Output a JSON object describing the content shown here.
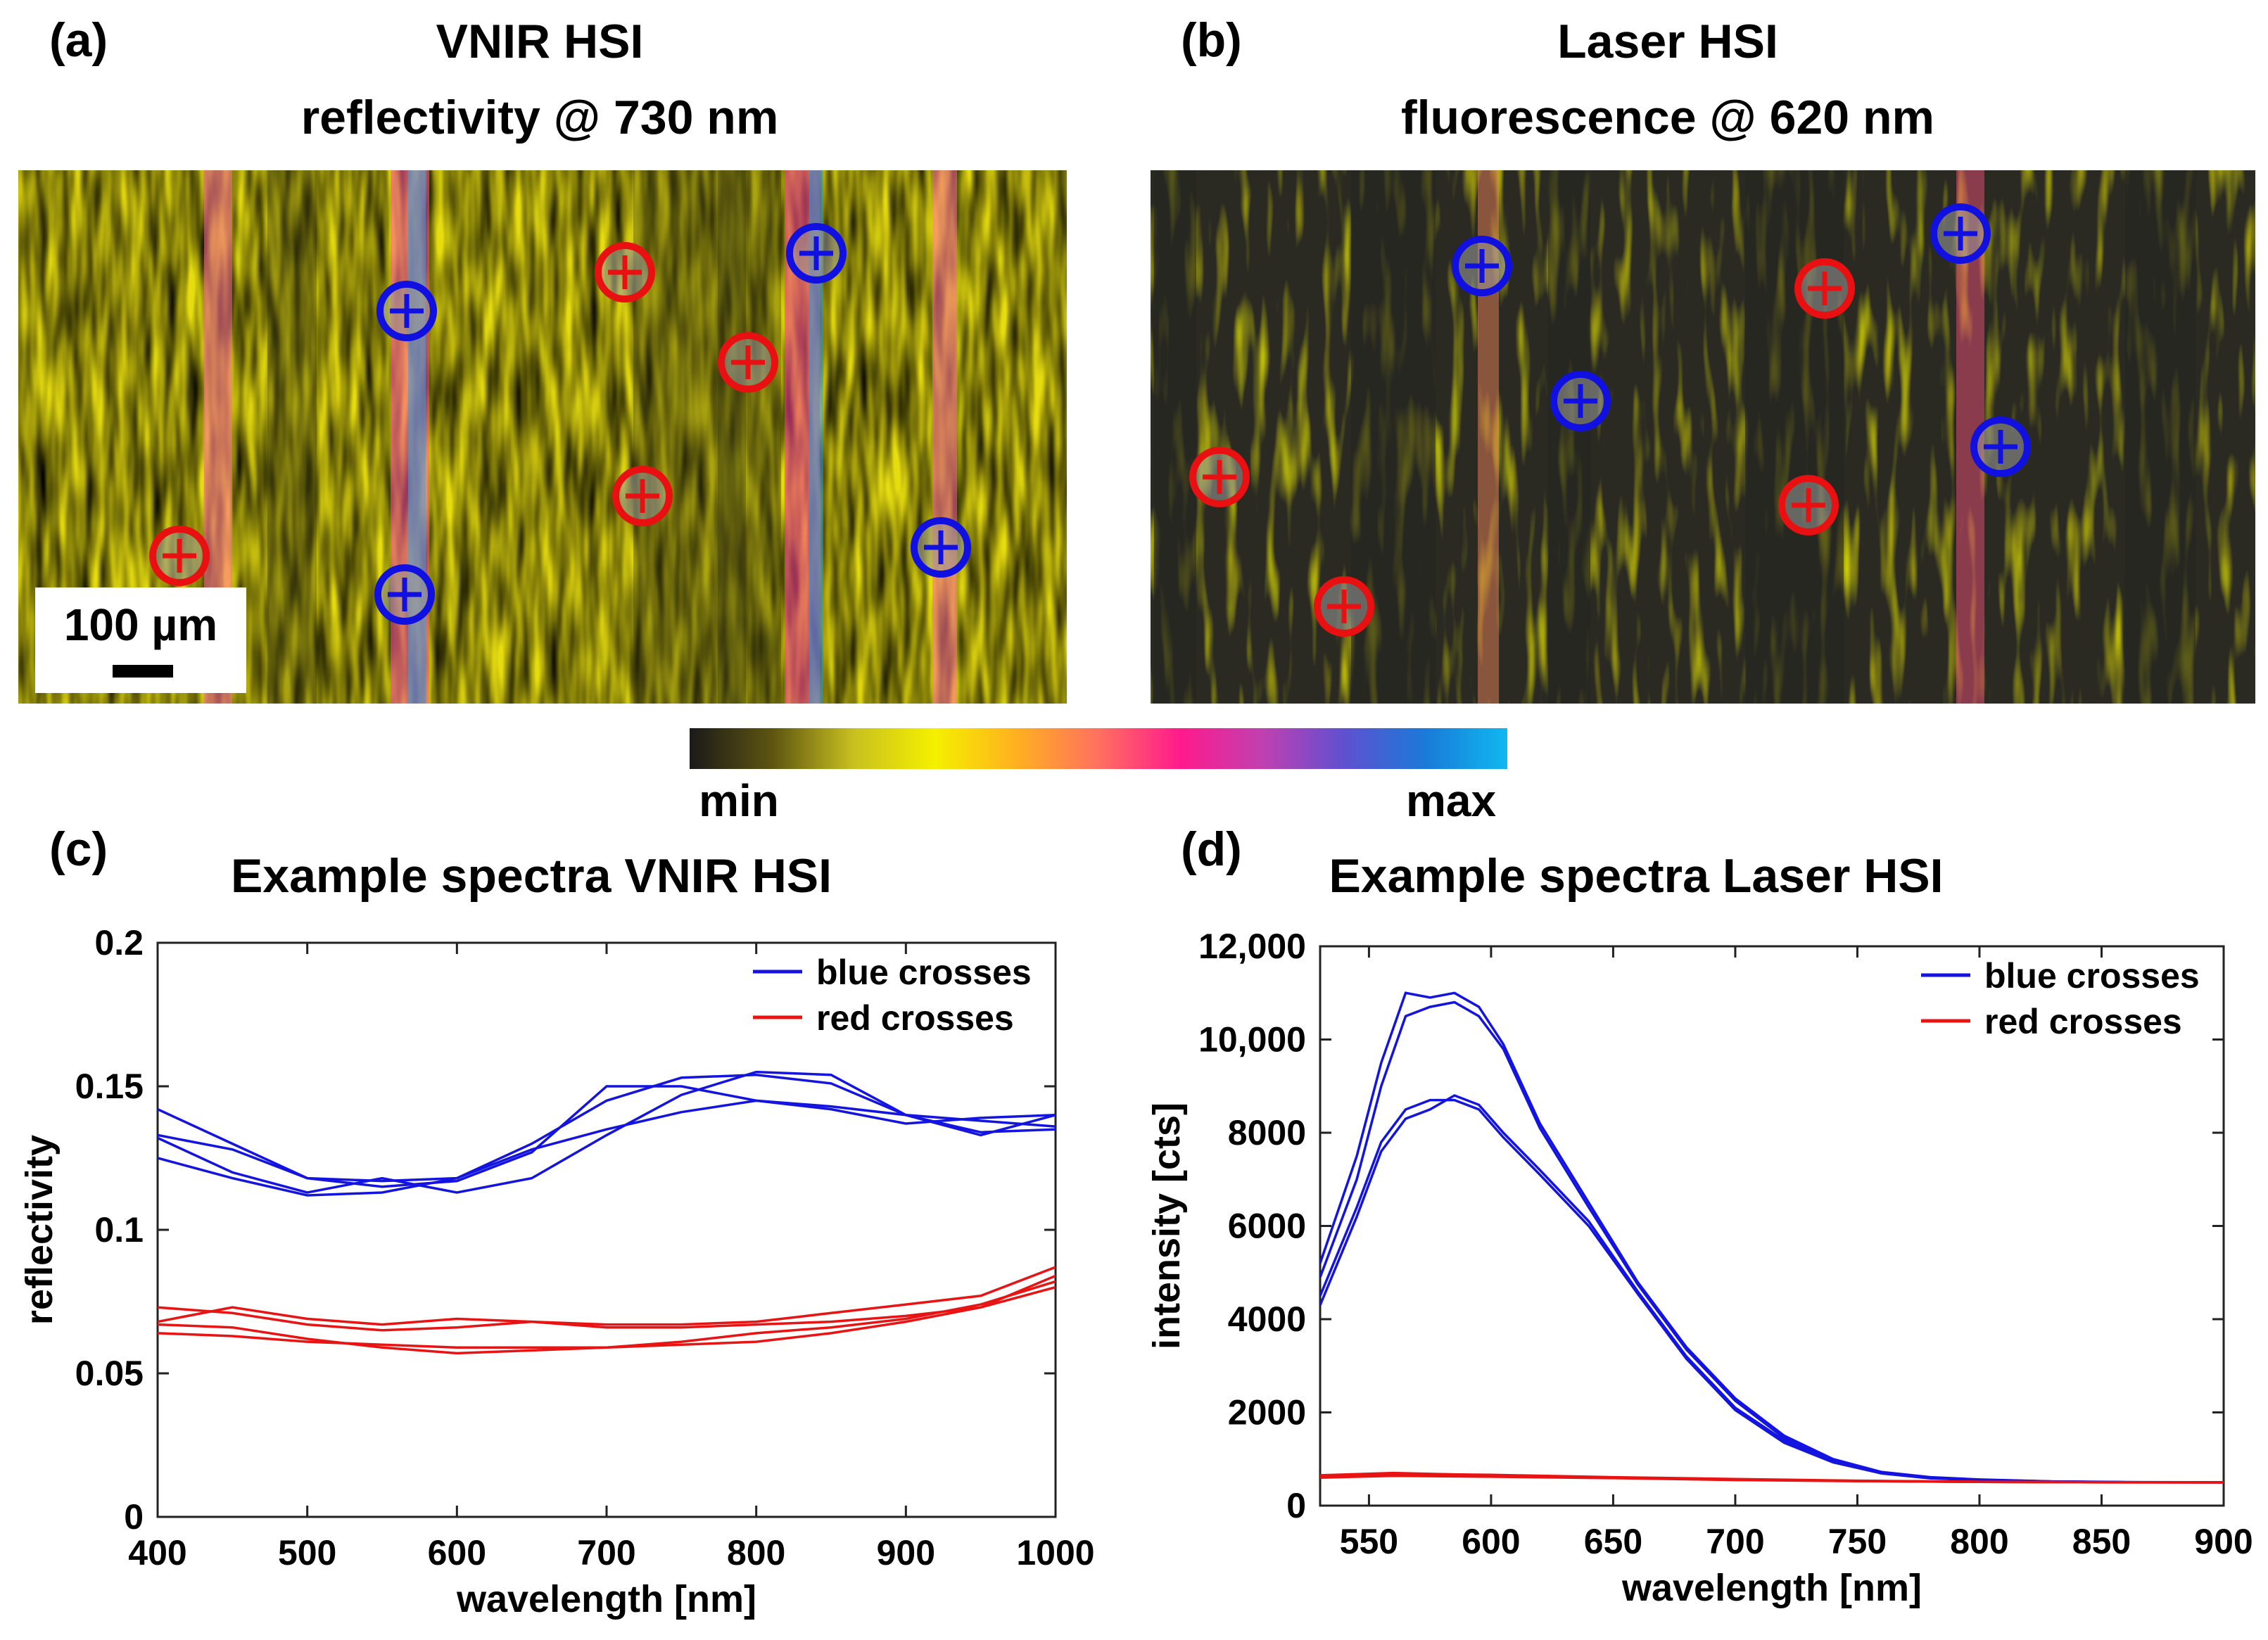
{
  "panels": {
    "a": {
      "label": "(a)",
      "title_line1": "VNIR HSI",
      "title_line2": "reflectivity @ 730 nm"
    },
    "b": {
      "label": "(b)",
      "title_line1": "Laser HSI",
      "title_line2": "fluorescence @ 620 nm"
    },
    "c": {
      "label": "(c)",
      "title": "Example spectra VNIR HSI"
    },
    "d": {
      "label": "(d)",
      "title": "Example spectra Laser HSI"
    }
  },
  "scale_bar": {
    "label": "100 µm"
  },
  "colorbar": {
    "min_label": "min",
    "max_label": "max",
    "stops": [
      "#1a1a1a",
      "#5c5410",
      "#c8c020",
      "#f5f000",
      "#ffb020",
      "#ff7060",
      "#ff1a8c",
      "#c040b0",
      "#6050d0",
      "#1a7ad8",
      "#10b8f0"
    ]
  },
  "colors": {
    "blue_series": "#1414e0",
    "red_series": "#e81414",
    "blue_marker": "#1010e0",
    "red_marker": "#e81010"
  },
  "markers": {
    "a": [
      {
        "color": "red"
      },
      {
        "color": "red"
      },
      {
        "color": "red"
      },
      {
        "color": "red"
      },
      {
        "color": "blue"
      },
      {
        "color": "blue"
      },
      {
        "color": "blue"
      },
      {
        "color": "blue"
      }
    ],
    "b": [
      {
        "color": "red"
      },
      {
        "color": "red"
      },
      {
        "color": "red"
      },
      {
        "color": "red"
      },
      {
        "color": "blue"
      },
      {
        "color": "blue"
      },
      {
        "color": "blue"
      },
      {
        "color": "blue"
      }
    ]
  },
  "chart_data": [
    {
      "id": "c",
      "type": "line",
      "title": "Example spectra VNIR HSI",
      "xlabel": "wavelength [nm]",
      "ylabel": "reflectivity",
      "xlim": [
        400,
        1000
      ],
      "ylim": [
        0,
        0.2
      ],
      "xticks": [
        400,
        500,
        600,
        700,
        800,
        900,
        1000
      ],
      "xtick_labels": [
        "400",
        "500",
        "600",
        "700",
        "800",
        "900",
        "1000"
      ],
      "yticks": [
        0,
        0.05,
        0.1,
        0.15,
        0.2
      ],
      "ytick_labels": [
        "0",
        "0.05",
        "0.1",
        "0.15",
        "0.2"
      ],
      "legend": {
        "position": "top-right",
        "entries": [
          {
            "label": "blue crosses",
            "color": "#1414e0"
          },
          {
            "label": "red crosses",
            "color": "#e81414"
          }
        ]
      },
      "series": [
        {
          "name": "blue crosses",
          "color": "#1414e0",
          "x": [
            400,
            450,
            500,
            550,
            600,
            650,
            700,
            750,
            800,
            850,
            900,
            950,
            1000
          ],
          "y": [
            0.142,
            0.13,
            0.118,
            0.117,
            0.118,
            0.13,
            0.145,
            0.153,
            0.154,
            0.151,
            0.14,
            0.133,
            0.14
          ]
        },
        {
          "name": "blue crosses",
          "color": "#1414e0",
          "x": [
            400,
            450,
            500,
            550,
            600,
            650,
            700,
            750,
            800,
            850,
            900,
            950,
            1000
          ],
          "y": [
            0.133,
            0.128,
            0.118,
            0.115,
            0.117,
            0.127,
            0.15,
            0.15,
            0.145,
            0.143,
            0.14,
            0.138,
            0.136
          ]
        },
        {
          "name": "blue crosses",
          "color": "#1414e0",
          "x": [
            400,
            450,
            500,
            550,
            600,
            650,
            700,
            750,
            800,
            850,
            900,
            950,
            1000
          ],
          "y": [
            0.125,
            0.118,
            0.112,
            0.113,
            0.118,
            0.128,
            0.135,
            0.141,
            0.145,
            0.142,
            0.137,
            0.139,
            0.14
          ]
        },
        {
          "name": "blue crosses",
          "color": "#1414e0",
          "x": [
            400,
            450,
            500,
            550,
            600,
            650,
            700,
            750,
            800,
            850,
            900,
            950,
            1000
          ],
          "y": [
            0.132,
            0.12,
            0.113,
            0.118,
            0.113,
            0.118,
            0.133,
            0.147,
            0.155,
            0.154,
            0.14,
            0.134,
            0.135
          ]
        },
        {
          "name": "red crosses",
          "color": "#e81414",
          "x": [
            400,
            450,
            500,
            550,
            600,
            650,
            700,
            750,
            800,
            850,
            900,
            950,
            1000
          ],
          "y": [
            0.073,
            0.071,
            0.067,
            0.065,
            0.066,
            0.068,
            0.067,
            0.067,
            0.068,
            0.071,
            0.074,
            0.077,
            0.087
          ]
        },
        {
          "name": "red crosses",
          "color": "#e81414",
          "x": [
            400,
            450,
            500,
            550,
            600,
            650,
            700,
            750,
            800,
            850,
            900,
            950,
            1000
          ],
          "y": [
            0.068,
            0.073,
            0.069,
            0.067,
            0.069,
            0.068,
            0.066,
            0.066,
            0.067,
            0.068,
            0.07,
            0.073,
            0.084
          ]
        },
        {
          "name": "red crosses",
          "color": "#e81414",
          "x": [
            400,
            450,
            500,
            550,
            600,
            650,
            700,
            750,
            800,
            850,
            900,
            950,
            1000
          ],
          "y": [
            0.064,
            0.063,
            0.061,
            0.06,
            0.059,
            0.059,
            0.059,
            0.06,
            0.061,
            0.064,
            0.068,
            0.073,
            0.08
          ]
        },
        {
          "name": "red crosses",
          "color": "#e81414",
          "x": [
            400,
            450,
            500,
            550,
            600,
            650,
            700,
            750,
            800,
            850,
            900,
            950,
            1000
          ],
          "y": [
            0.067,
            0.066,
            0.062,
            0.059,
            0.057,
            0.058,
            0.059,
            0.061,
            0.064,
            0.066,
            0.069,
            0.074,
            0.082
          ]
        }
      ]
    },
    {
      "id": "d",
      "type": "line",
      "title": "Example spectra Laser HSI",
      "xlabel": "wavelength [nm]",
      "ylabel": "intensity [cts]",
      "xlim": [
        530,
        900
      ],
      "ylim": [
        0,
        12000
      ],
      "xticks": [
        550,
        600,
        650,
        700,
        750,
        800,
        850,
        900
      ],
      "xtick_labels": [
        "550",
        "600",
        "650",
        "700",
        "750",
        "800",
        "850",
        "900"
      ],
      "yticks": [
        0,
        2000,
        4000,
        6000,
        8000,
        10000,
        12000
      ],
      "ytick_labels": [
        "0",
        "2000",
        "4000",
        "6000",
        "8000",
        "10,000",
        "12,000"
      ],
      "legend": {
        "position": "top-right",
        "entries": [
          {
            "label": "blue crosses",
            "color": "#1414e0"
          },
          {
            "label": "red crosses",
            "color": "#e81414"
          }
        ]
      },
      "series": [
        {
          "name": "blue crosses",
          "color": "#1414e0",
          "x": [
            530,
            545,
            555,
            565,
            575,
            585,
            595,
            605,
            620,
            640,
            660,
            680,
            700,
            720,
            740,
            760,
            780,
            800,
            830,
            860,
            900
          ],
          "y": [
            5200,
            7500,
            9500,
            11000,
            10900,
            11000,
            10700,
            9900,
            8200,
            6500,
            4800,
            3400,
            2300,
            1500,
            1000,
            720,
            610,
            560,
            520,
            505,
            500
          ]
        },
        {
          "name": "blue crosses",
          "color": "#1414e0",
          "x": [
            530,
            545,
            555,
            565,
            575,
            585,
            595,
            605,
            620,
            640,
            660,
            680,
            700,
            720,
            740,
            760,
            780,
            800,
            830,
            860,
            900
          ],
          "y": [
            4900,
            7000,
            9000,
            10500,
            10700,
            10800,
            10500,
            9800,
            8100,
            6400,
            4750,
            3350,
            2250,
            1450,
            980,
            710,
            600,
            555,
            518,
            503,
            500
          ]
        },
        {
          "name": "blue crosses",
          "color": "#1414e0",
          "x": [
            530,
            545,
            555,
            565,
            575,
            585,
            595,
            605,
            620,
            640,
            660,
            680,
            700,
            720,
            740,
            760,
            780,
            800,
            830,
            860,
            900
          ],
          "y": [
            4300,
            6200,
            7600,
            8300,
            8500,
            8800,
            8600,
            8000,
            7200,
            6100,
            4600,
            3200,
            2100,
            1400,
            950,
            700,
            590,
            550,
            515,
            502,
            500
          ]
        },
        {
          "name": "blue crosses",
          "color": "#1414e0",
          "x": [
            530,
            545,
            555,
            565,
            575,
            585,
            595,
            605,
            620,
            640,
            660,
            680,
            700,
            720,
            740,
            760,
            780,
            800,
            830,
            860,
            900
          ],
          "y": [
            4500,
            6400,
            7800,
            8500,
            8700,
            8700,
            8500,
            7900,
            7100,
            6000,
            4550,
            3150,
            2050,
            1350,
            930,
            690,
            585,
            548,
            514,
            502,
            500
          ]
        },
        {
          "name": "red crosses",
          "color": "#e81414",
          "x": [
            530,
            560,
            600,
            650,
            700,
            750,
            800,
            850,
            900
          ],
          "y": [
            650,
            700,
            650,
            600,
            560,
            530,
            510,
            500,
            500
          ]
        },
        {
          "name": "red crosses",
          "color": "#e81414",
          "x": [
            530,
            560,
            600,
            650,
            700,
            750,
            800,
            850,
            900
          ],
          "y": [
            620,
            680,
            660,
            610,
            570,
            535,
            512,
            502,
            500
          ]
        },
        {
          "name": "red crosses",
          "color": "#e81414",
          "x": [
            530,
            560,
            600,
            650,
            700,
            750,
            800,
            850,
            900
          ],
          "y": [
            600,
            640,
            620,
            590,
            550,
            525,
            508,
            500,
            500
          ]
        },
        {
          "name": "red crosses",
          "color": "#e81414",
          "x": [
            530,
            560,
            600,
            650,
            700,
            750,
            800,
            850,
            900
          ],
          "y": [
            630,
            660,
            640,
            600,
            560,
            530,
            510,
            501,
            500
          ]
        }
      ]
    }
  ]
}
